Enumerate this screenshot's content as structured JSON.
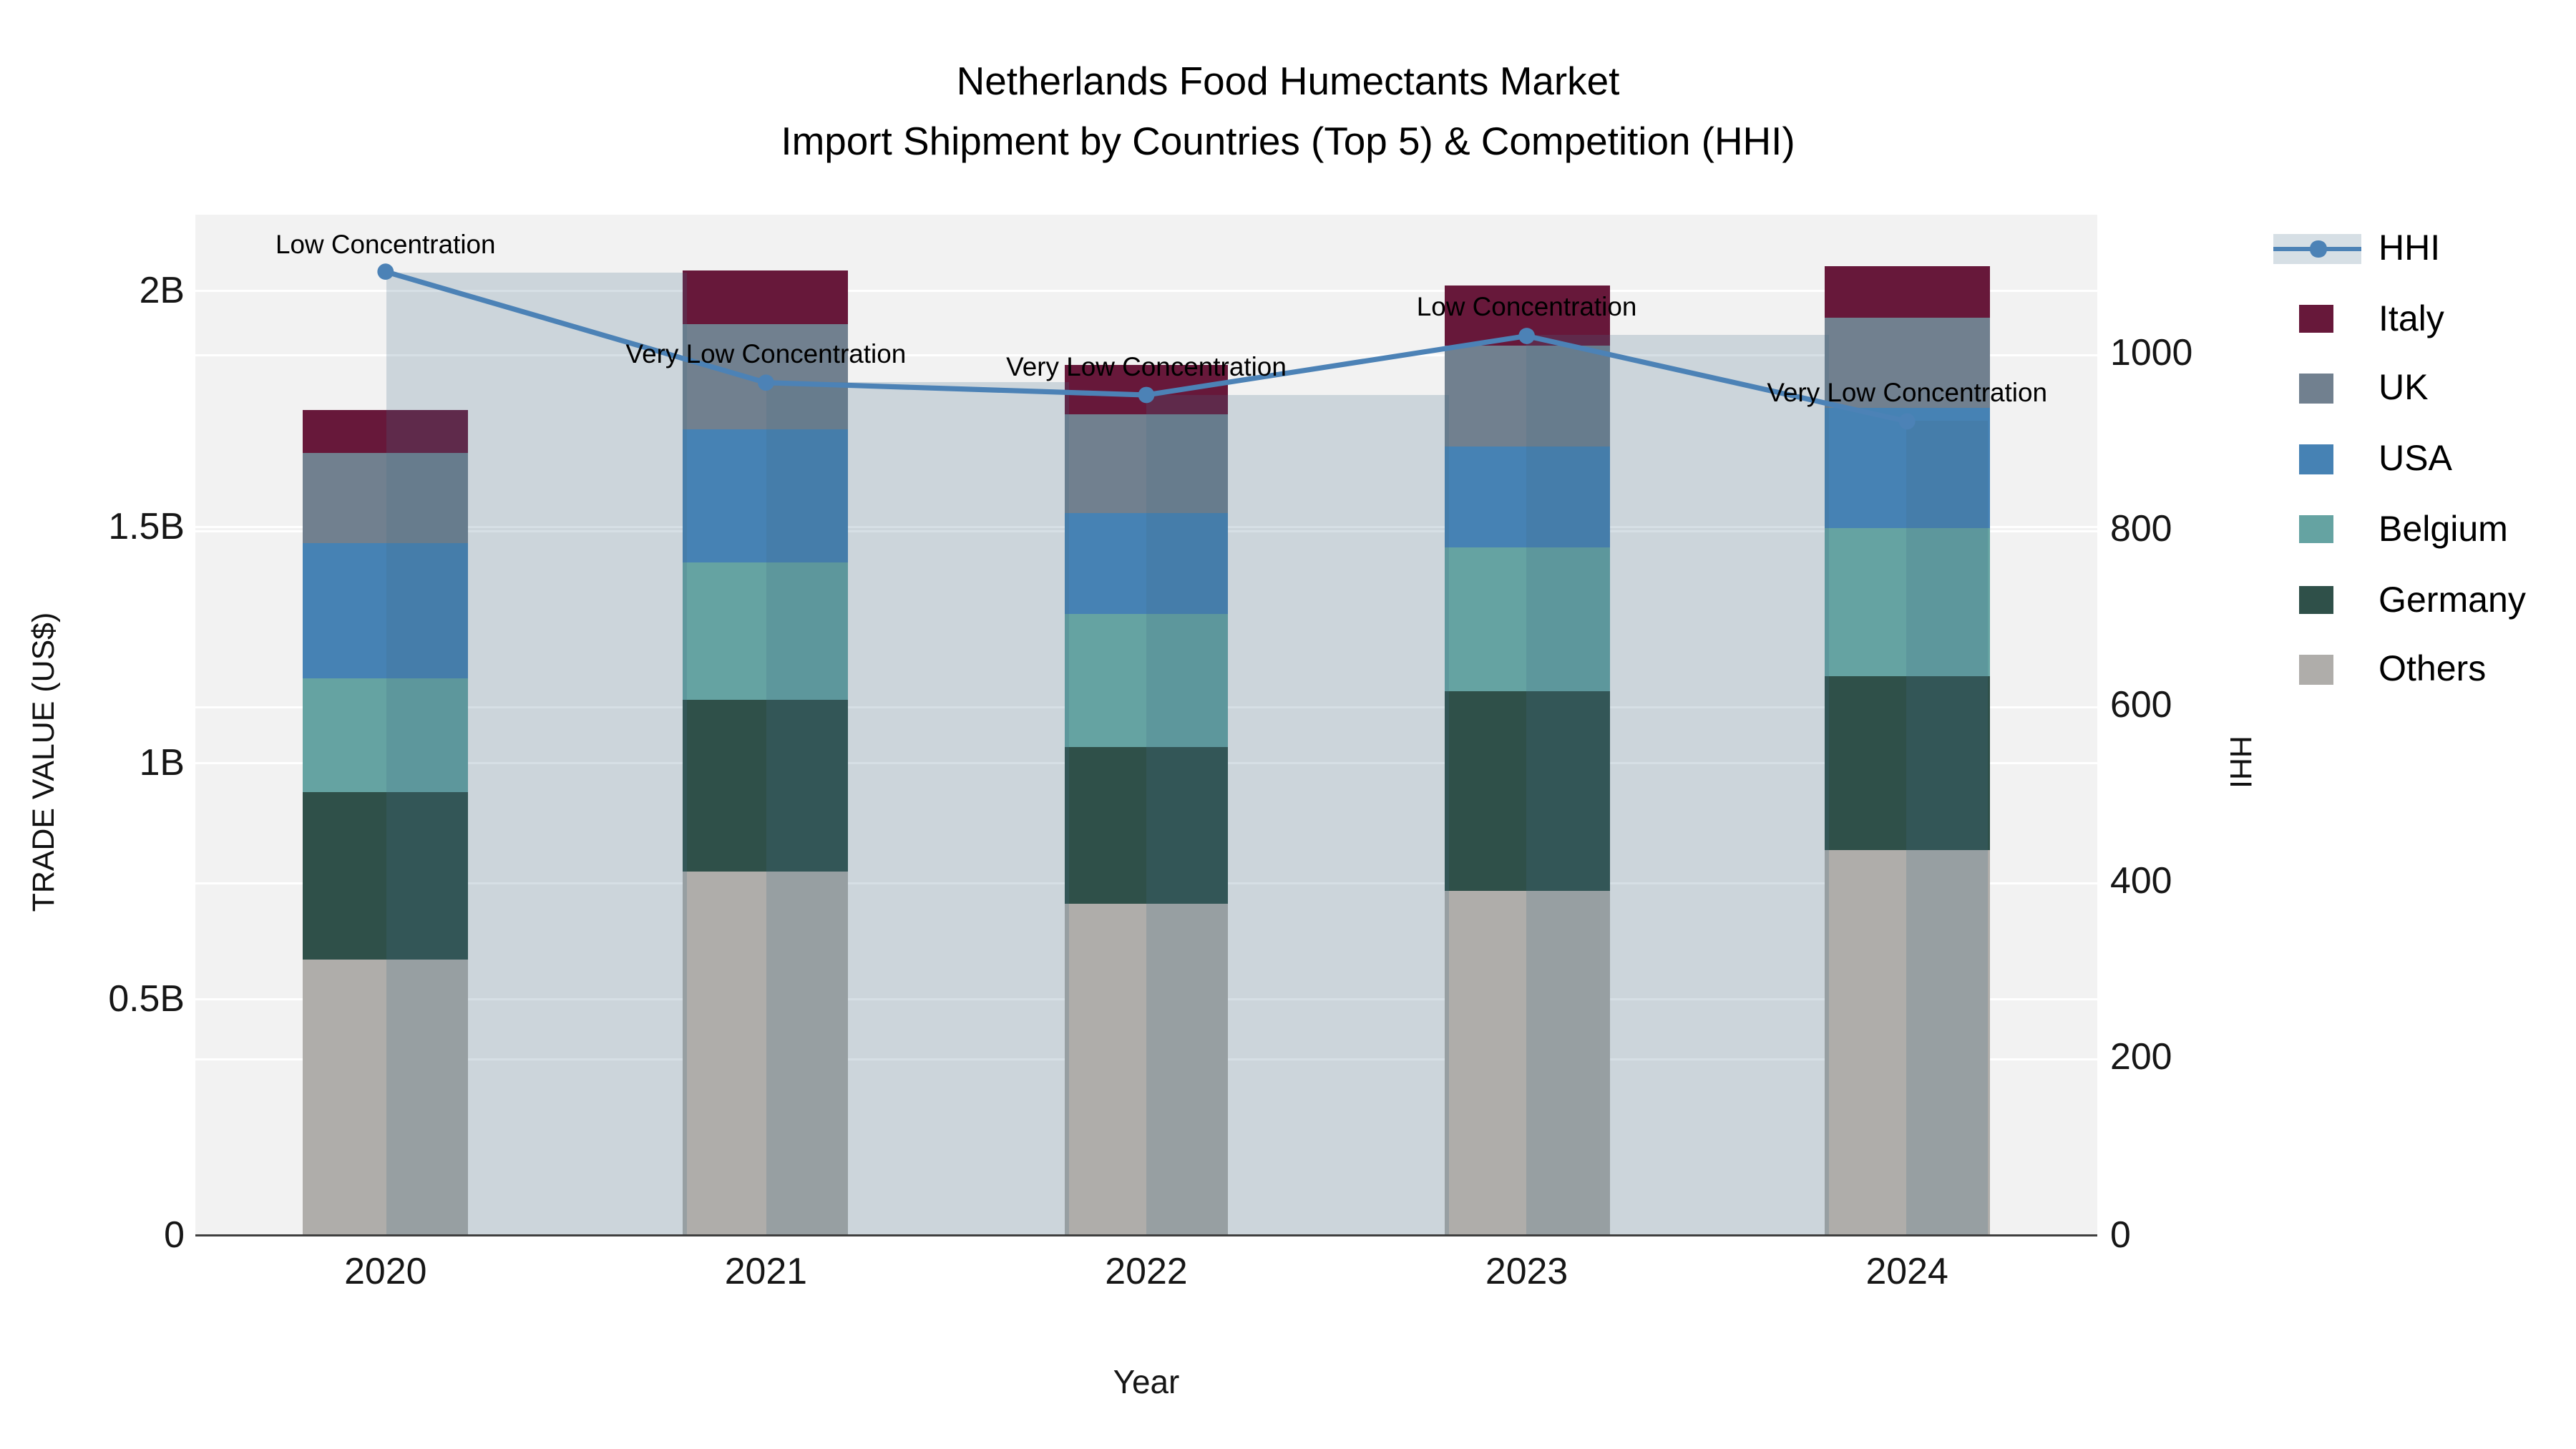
{
  "title": {
    "line1": "Netherlands Food Humectants Market",
    "line2": "Import Shipment by Countries (Top 5) & Competition (HHI)"
  },
  "chart_data": {
    "type": "bar",
    "stacked": true,
    "subtype": "stacked-bar-with-line-overlay",
    "categories": [
      "2020",
      "2021",
      "2022",
      "2023",
      "2024"
    ],
    "xlabel": "Year",
    "y_left": {
      "title": "TRADE VALUE (US$)",
      "unit": "billions of US$",
      "tick_values": [
        0,
        0.5,
        1,
        1.5,
        2
      ],
      "tick_labels": [
        "0",
        "0.5B",
        "1B",
        "1.5B",
        "2B"
      ],
      "max": 2.161
    },
    "y_right": {
      "title": "HHI",
      "tick_values": [
        0,
        200,
        400,
        600,
        800,
        1000
      ],
      "tick_labels": [
        "0",
        "200",
        "400",
        "600",
        "800",
        "1000"
      ],
      "max": 1157.7
    },
    "series": [
      {
        "name": "Others",
        "color": "#afadaa",
        "values": [
          0.584,
          0.768,
          0.701,
          0.727,
          0.813
        ]
      },
      {
        "name": "Germany",
        "color": "#2f5049",
        "values": [
          0.352,
          0.367,
          0.332,
          0.425,
          0.371
        ]
      },
      {
        "name": "Belgium",
        "color": "#65a3a2",
        "values": [
          0.243,
          0.287,
          0.284,
          0.306,
          0.312
        ]
      },
      {
        "name": "USA",
        "color": "#4682b4",
        "values": [
          0.287,
          0.285,
          0.21,
          0.211,
          0.257
        ]
      },
      {
        "name": "UK",
        "color": "#71808f",
        "values": [
          0.188,
          0.222,
          0.213,
          0.214,
          0.189
        ]
      },
      {
        "name": "Italy",
        "color": "#67183a",
        "values": [
          0.093,
          0.112,
          0.101,
          0.126,
          0.11
        ]
      }
    ],
    "line_series": {
      "name": "HHI",
      "axis": "right",
      "color": "#4c82b6",
      "values": [
        1093,
        967,
        953,
        1020,
        923
      ],
      "band_color": "rgba(70,108,135,0.22)",
      "band_width_frac": [
        0.795,
        0.795,
        0.795,
        0.795,
        0.215
      ]
    },
    "annotations": [
      {
        "x": "2020",
        "text": "Low Concentration"
      },
      {
        "x": "2021",
        "text": "Very Low Concentration"
      },
      {
        "x": "2022",
        "text": "Very Low Concentration"
      },
      {
        "x": "2023",
        "text": "Low Concentration"
      },
      {
        "x": "2024",
        "text": "Very Low Concentration"
      }
    ],
    "legend": [
      {
        "name": "HHI",
        "kind": "line"
      },
      {
        "name": "Italy",
        "kind": "swatch"
      },
      {
        "name": "UK",
        "kind": "swatch"
      },
      {
        "name": "USA",
        "kind": "swatch"
      },
      {
        "name": "Belgium",
        "kind": "swatch"
      },
      {
        "name": "Germany",
        "kind": "swatch"
      },
      {
        "name": "Others",
        "kind": "swatch"
      }
    ],
    "layout_hints": {
      "grid": true,
      "plot_bg": "#f2f2f2",
      "legend_position": "right"
    }
  }
}
